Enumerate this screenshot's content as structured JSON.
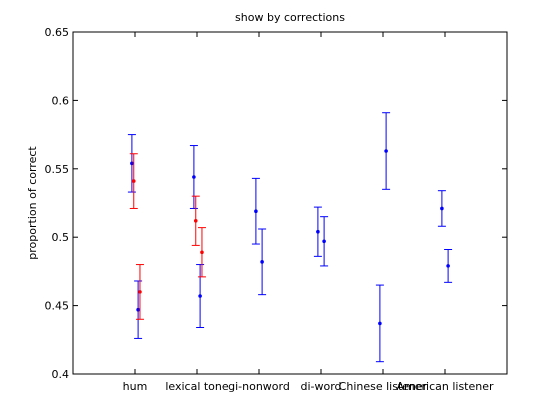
{
  "chart_data": {
    "type": "scatter",
    "title": "show by corrections",
    "xlabel": "",
    "ylabel": "proportion of correct",
    "ylim": [
      0.4,
      0.65
    ],
    "yticks": [
      "0.4",
      "0.45",
      "0.5",
      "0.55",
      "0.6",
      "0.65"
    ],
    "categories": [
      "hum",
      "lexical tone",
      "gi-nonword",
      "di-word",
      "Chinese listener",
      "American listener"
    ],
    "grid": false,
    "series": [
      {
        "color": "#0000ff",
        "points": [
          {
            "x": 0.95,
            "y": 0.554,
            "low": 0.533,
            "high": 0.575
          },
          {
            "x": 1.05,
            "y": 0.447,
            "low": 0.426,
            "high": 0.468
          },
          {
            "x": 1.95,
            "y": 0.544,
            "low": 0.521,
            "high": 0.567
          },
          {
            "x": 2.05,
            "y": 0.457,
            "low": 0.434,
            "high": 0.48
          },
          {
            "x": 2.95,
            "y": 0.519,
            "low": 0.495,
            "high": 0.543
          },
          {
            "x": 3.05,
            "y": 0.482,
            "low": 0.458,
            "high": 0.506
          },
          {
            "x": 3.95,
            "y": 0.504,
            "low": 0.486,
            "high": 0.522
          },
          {
            "x": 4.05,
            "y": 0.497,
            "low": 0.479,
            "high": 0.515
          },
          {
            "x": 4.95,
            "y": 0.437,
            "low": 0.409,
            "high": 0.465
          },
          {
            "x": 5.05,
            "y": 0.563,
            "low": 0.535,
            "high": 0.591
          },
          {
            "x": 5.95,
            "y": 0.521,
            "low": 0.508,
            "high": 0.534
          },
          {
            "x": 6.05,
            "y": 0.479,
            "low": 0.467,
            "high": 0.491
          }
        ]
      },
      {
        "color": "#ff0000",
        "points": [
          {
            "x": 0.98,
            "y": 0.541,
            "low": 0.521,
            "high": 0.561
          },
          {
            "x": 1.08,
            "y": 0.46,
            "low": 0.44,
            "high": 0.48
          },
          {
            "x": 1.98,
            "y": 0.512,
            "low": 0.494,
            "high": 0.53
          },
          {
            "x": 2.08,
            "y": 0.489,
            "low": 0.471,
            "high": 0.507
          }
        ]
      }
    ]
  }
}
